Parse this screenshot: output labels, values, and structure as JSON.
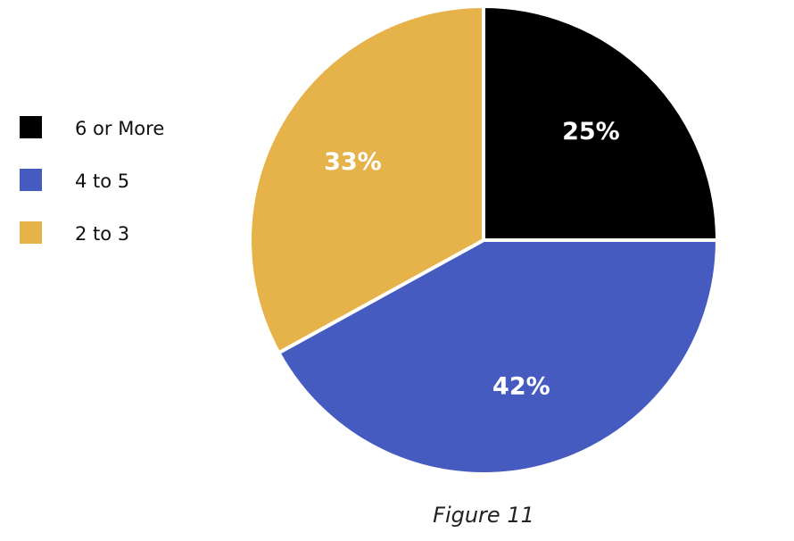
{
  "chart_data": {
    "type": "pie",
    "categories": [
      "6 or More",
      "4 to 5",
      "2 to 3"
    ],
    "values": [
      25,
      42,
      33
    ],
    "value_labels": [
      "25%",
      "42%",
      "33%"
    ],
    "colors": [
      "#000000",
      "#465bbf",
      "#e6b24a"
    ],
    "caption": "Figure 11",
    "legend": "left"
  }
}
